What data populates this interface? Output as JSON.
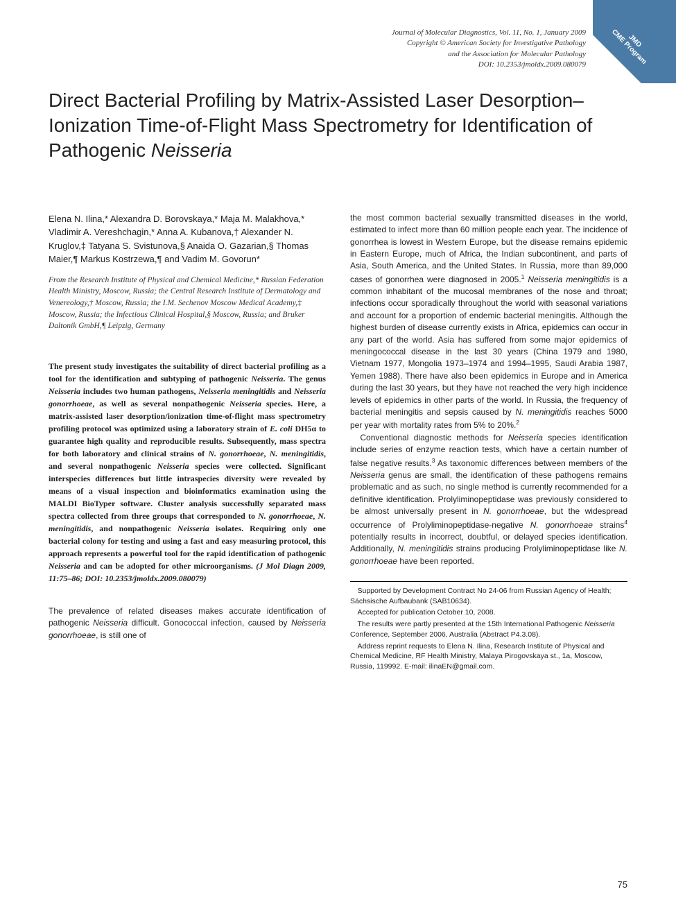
{
  "badge": {
    "line1": "JMD",
    "line2": "CME Program"
  },
  "meta": {
    "line1": "Journal of Molecular Diagnostics, Vol. 11, No. 1, January 2009",
    "line2": "Copyright © American Society for Investigative Pathology",
    "line3": "and the Association for Molecular Pathology",
    "line4": "DOI: 10.2353/jmoldx.2009.080079"
  },
  "title": {
    "text_before_italic": "Direct Bacterial Profiling by Matrix-Assisted Laser Desorption–Ionization Time-of-Flight Mass Spectrometry for Identification of Pathogenic ",
    "italic": "Neisseria"
  },
  "authors": "Elena N. Ilina,* Alexandra D. Borovskaya,* Maja M. Malakhova,* Vladimir A. Vereshchagin,* Anna A. Kubanova,† Alexander N. Kruglov,‡ Tatyana S. Svistunova,§ Anaida O. Gazarian,§ Thomas Maier,¶ Markus Kostrzewa,¶ and Vadim M. Govorun*",
  "affil": "From the Research Institute of Physical and Chemical Medicine,* Russian Federation Health Ministry, Moscow, Russia; the Central Research Institute of Dermatology and Venereology,† Moscow, Russia; the I.M. Sechenov Moscow Medical Academy,‡ Moscow, Russia; the Infectious Clinical Hospital,§ Moscow, Russia; and Bruker Daltonik GmbH,¶ Leipzig, Germany",
  "abstract": {
    "html": "The present study investigates the suitability of direct bacterial profiling as a tool for the identification and subtyping of pathogenic <span class='ital'>Neisseria</span>. The genus <span class='ital'>Neisseria</span> includes two human pathogens, <span class='ital'>Neisseria meningitidis</span> and <span class='ital'>Neisseria gonorrhoeae</span>, as well as several nonpathogenic <span class='ital'>Neisseria</span> species. Here, a matrix-assisted laser desorption/ionization time-of-flight mass spectrometry profiling protocol was optimized using a laboratory strain of <span class='ital'>E. coli</span> DH5α to guarantee high quality and reproducible results. Subsequently, mass spectra for both laboratory and clinical strains of <span class='ital'>N. gonorrhoeae</span>, <span class='ital'>N. meningitidis</span>, and several nonpathogenic <span class='ital'>Neisseria</span> species were collected. Significant interspecies differences but little intraspecies diversity were revealed by means of a visual inspection and bioinformatics examination using the MALDI BioTyper software. Cluster analysis successfully separated mass spectra collected from three groups that corresponded to <span class='ital'>N. gonorrhoeae</span>, <span class='ital'>N. meningitidis</span>, and nonpathogenic <span class='ital'>Neisseria</span> isolates. Requiring only one bacterial colony for testing and using a fast and easy measuring protocol, this approach represents a powerful tool for the rapid identification of pathogenic <span class='ital'>Neisseria</span> and can be adopted for other microorganisms. <span class='ital'>(J Mol Diagn 2009, 11:75–86; DOI: 10.2353/jmoldx.2009.080079)</span>"
  },
  "intro_p1": {
    "html": "The prevalence of related diseases makes accurate identification of pathogenic <span class='ital'>Neisseria</span> difficult. Gonococcal infection, caused by <span class='ital'>Neisseria gonorrhoeae</span>, is still one of"
  },
  "col2_p1": {
    "html": "the most common bacterial sexually transmitted diseases in the world, estimated to infect more than 60 million people each year. The incidence of gonorrhea is lowest in Western Europe, but the disease remains epidemic in Eastern Europe, much of Africa, the Indian subcontinent, and parts of Asia, South America, and the United States. In Russia, more than 89,000 cases of gonorrhea were diagnosed in 2005.<sup>1</sup> <span class='ital'>Neisseria meningitidis</span> is a common inhabitant of the mucosal membranes of the nose and throat; infections occur sporadically throughout the world with seasonal variations and account for a proportion of endemic bacterial meningitis. Although the highest burden of disease currently exists in Africa, epidemics can occur in any part of the world. Asia has suffered from some major epidemics of meningococcal disease in the last 30 years (China 1979 and 1980, Vietnam 1977, Mongolia 1973–1974 and 1994–1995, Saudi Arabia 1987, Yemen 1988). There have also been epidemics in Europe and in America during the last 30 years, but they have not reached the very high incidence levels of epidemics in other parts of the world. In Russia, the frequency of bacterial meningitis and sepsis caused by <span class='ital'>N. meningitidis</span> reaches 5000 per year with mortality rates from 5% to 20%.<sup>2</sup>"
  },
  "col2_p2": {
    "html": "Conventional diagnostic methods for <span class='ital'>Neisseria</span> species identification include series of enzyme reaction tests, which have a certain number of false negative results.<sup>3</sup> As taxonomic differences between members of the <span class='ital'>Neisseria</span> genus are small, the identification of these pathogens remains problematic and as such, no single method is currently recommended for a definitive identification. Prolyliminopeptidase was previously considered to be almost universally present in <span class='ital'>N. gonorrhoeae</span>, but the widespread occurrence of Prolyliminopeptidase-negative <span class='ital'>N. gonorrhoeae</span> strains<sup>4</sup> potentially results in incorrect, doubtful, or delayed species identification. Additionally, <span class='ital'>N. meningitidis</span> strains producing Prolyliminopeptidase like <span class='ital'>N. gonorrhoeae</span> have been reported."
  },
  "footnotes": {
    "f1": "Supported by Development Contract No 24-06 from Russian Agency of Health; Sächsische Aufbaubank (SAB10634).",
    "f2": "Accepted for publication October 10, 2008.",
    "f3_html": "The results were partly presented at the 15th International Pathogenic <span class='ital'>Neisseria</span> Conference, September 2006, Australia (Abstract P4.3.08).",
    "f4": "Address reprint requests to Elena N. Ilina, Research Institute of Physical and Chemical Medicine, RF Health Ministry, Malaya Pirogovskaya st., 1a, Moscow, Russia, 119992. E-mail: ilinaEN@gmail.com."
  },
  "page_num": "75"
}
